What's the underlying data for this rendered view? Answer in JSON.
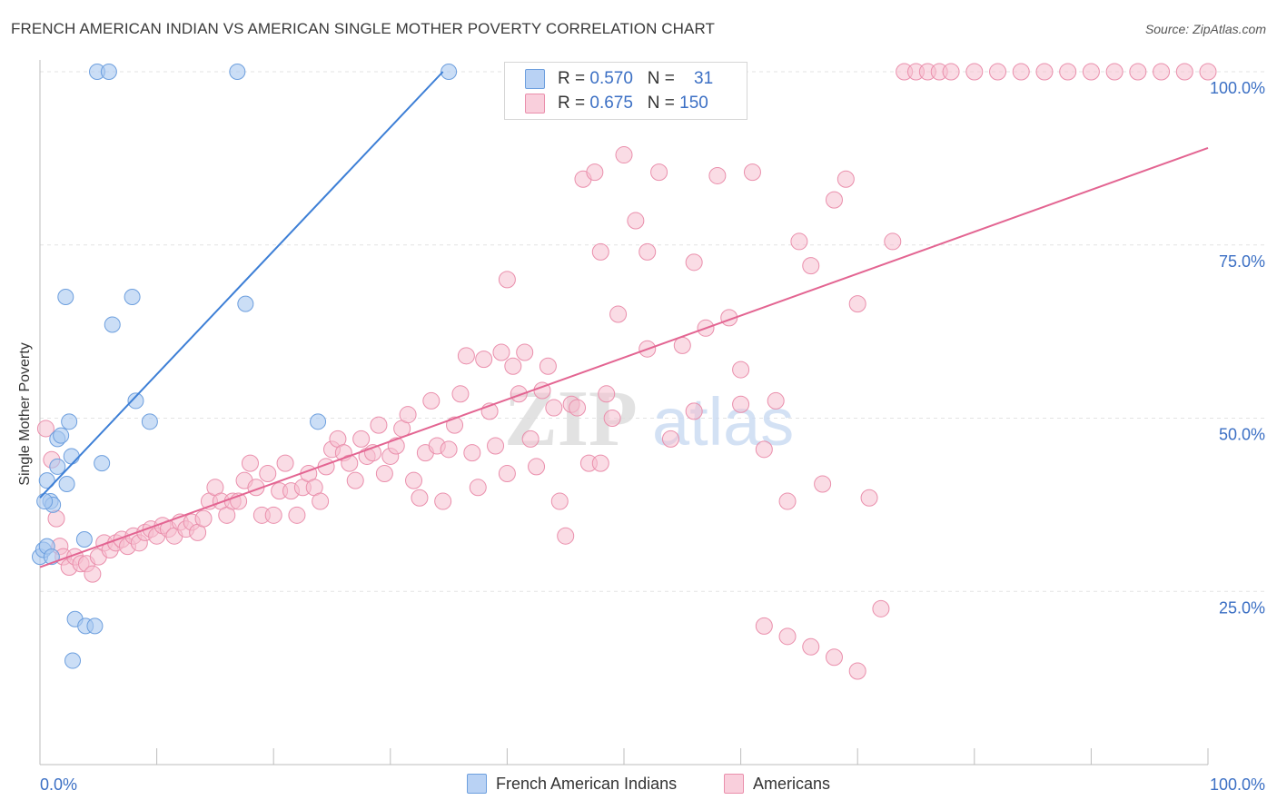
{
  "title": "FRENCH AMERICAN INDIAN VS AMERICAN SINGLE MOTHER POVERTY CORRELATION CHART",
  "source": "Source: ZipAtlas.com",
  "watermark": {
    "zip": "ZIP",
    "atlas": "atlas"
  },
  "legend_stats": [
    {
      "r_label": "R =",
      "r_value": "0.570",
      "n_label": "N =",
      "n_value": "31"
    },
    {
      "r_label": "R =",
      "r_value": "0.675",
      "n_label": "N =",
      "n_value": "150"
    }
  ],
  "colors": {
    "blue_fill": "#a9c8f0",
    "blue_stroke": "#6d9fde",
    "blue_line": "#3d7fd6",
    "pink_fill": "#f6bfd0",
    "pink_stroke": "#ea8fac",
    "pink_line": "#e36592",
    "tick_label": "#3b6fc4",
    "grid": "#e3e3e3"
  },
  "chart_data": {
    "type": "scatter",
    "title": "FRENCH AMERICAN INDIAN VS AMERICAN SINGLE MOTHER POVERTY CORRELATION CHART",
    "xlabel": "",
    "ylabel": "Single Mother Poverty",
    "xlim": [
      0,
      100
    ],
    "ylim": [
      0,
      102
    ],
    "x_tick_labels": [
      "0.0%",
      "100.0%"
    ],
    "y_ticks": [
      25,
      50,
      75,
      100
    ],
    "y_tick_labels": [
      "25.0%",
      "50.0%",
      "75.0%",
      "100.0%"
    ],
    "grid": true,
    "legend_position": "bottom",
    "series": [
      {
        "name": "French American Indians",
        "color": "#a9c8f0",
        "trend": {
          "x": [
            0,
            34.5
          ],
          "y": [
            38.5,
            100
          ]
        },
        "points": [
          [
            0,
            30
          ],
          [
            0.3,
            31
          ],
          [
            0.6,
            31.5
          ],
          [
            0.6,
            41
          ],
          [
            0.9,
            38
          ],
          [
            1.1,
            37.5
          ],
          [
            1.5,
            43
          ],
          [
            1.5,
            47
          ],
          [
            1.8,
            47.5
          ],
          [
            2.2,
            67.5
          ],
          [
            2.3,
            40.5
          ],
          [
            2.5,
            49.5
          ],
          [
            2.7,
            44.5
          ],
          [
            3,
            21
          ],
          [
            3.8,
            32.5
          ],
          [
            3.9,
            20
          ],
          [
            4.7,
            20
          ],
          [
            4.9,
            100
          ],
          [
            5.3,
            43.5
          ],
          [
            5.9,
            100
          ],
          [
            6.2,
            63.5
          ],
          [
            7.9,
            67.5
          ],
          [
            8.2,
            52.5
          ],
          [
            9.4,
            49.5
          ],
          [
            16.9,
            100
          ],
          [
            17.6,
            66.5
          ],
          [
            23.8,
            49.5
          ],
          [
            35,
            100
          ],
          [
            2.8,
            15
          ],
          [
            1,
            30
          ],
          [
            0.4,
            38
          ]
        ]
      },
      {
        "name": "Americans",
        "color": "#f6bfd0",
        "trend": {
          "x": [
            0,
            100
          ],
          "y": [
            28.5,
            89
          ]
        },
        "points": [
          [
            0.5,
            48.5
          ],
          [
            1,
            44
          ],
          [
            1.4,
            35.5
          ],
          [
            1.7,
            31.5
          ],
          [
            2,
            30
          ],
          [
            2.5,
            28.5
          ],
          [
            3,
            30
          ],
          [
            3.5,
            29
          ],
          [
            4,
            29
          ],
          [
            4.5,
            27.5
          ],
          [
            5,
            30
          ],
          [
            5.5,
            32
          ],
          [
            6,
            31
          ],
          [
            6.5,
            32
          ],
          [
            7,
            32.5
          ],
          [
            7.5,
            31.5
          ],
          [
            8,
            33
          ],
          [
            8.5,
            32
          ],
          [
            9,
            33.5
          ],
          [
            9.5,
            34
          ],
          [
            10,
            33
          ],
          [
            10.5,
            34.5
          ],
          [
            11,
            34
          ],
          [
            11.5,
            33
          ],
          [
            12,
            35
          ],
          [
            12.5,
            34
          ],
          [
            13,
            35
          ],
          [
            13.5,
            33.5
          ],
          [
            14,
            35.5
          ],
          [
            14.5,
            38
          ],
          [
            15,
            40
          ],
          [
            15.5,
            38
          ],
          [
            16,
            36
          ],
          [
            16.5,
            38
          ],
          [
            17,
            38
          ],
          [
            17.5,
            41
          ],
          [
            18,
            43.5
          ],
          [
            18.5,
            40
          ],
          [
            19,
            36
          ],
          [
            19.5,
            42
          ],
          [
            20,
            36
          ],
          [
            20.5,
            39.5
          ],
          [
            21,
            43.5
          ],
          [
            21.5,
            39.5
          ],
          [
            22,
            36
          ],
          [
            22.5,
            40
          ],
          [
            23,
            42
          ],
          [
            23.5,
            40
          ],
          [
            24,
            38
          ],
          [
            24.5,
            43
          ],
          [
            25,
            45.5
          ],
          [
            25.5,
            47
          ],
          [
            26,
            45
          ],
          [
            26.5,
            43.5
          ],
          [
            27,
            41
          ],
          [
            27.5,
            47
          ],
          [
            28,
            44.5
          ],
          [
            28.5,
            45
          ],
          [
            29,
            49
          ],
          [
            29.5,
            42
          ],
          [
            30,
            44.5
          ],
          [
            30.5,
            46
          ],
          [
            31,
            48.5
          ],
          [
            31.5,
            50.5
          ],
          [
            32,
            41
          ],
          [
            32.5,
            38.5
          ],
          [
            33,
            45
          ],
          [
            33.5,
            52.5
          ],
          [
            34,
            46
          ],
          [
            34.5,
            38
          ],
          [
            35,
            45.5
          ],
          [
            35.5,
            49
          ],
          [
            36,
            53.5
          ],
          [
            36.5,
            59
          ],
          [
            37,
            45
          ],
          [
            37.5,
            40
          ],
          [
            38,
            58.5
          ],
          [
            38.5,
            51
          ],
          [
            39,
            46
          ],
          [
            39.5,
            59.5
          ],
          [
            40,
            42
          ],
          [
            40.5,
            57.5
          ],
          [
            41,
            53.5
          ],
          [
            41.5,
            59.5
          ],
          [
            42,
            47
          ],
          [
            42.5,
            43
          ],
          [
            43,
            54
          ],
          [
            43.5,
            57.5
          ],
          [
            44,
            51.5
          ],
          [
            44.5,
            38
          ],
          [
            45,
            33
          ],
          [
            45.5,
            52
          ],
          [
            46,
            51.5
          ],
          [
            46.5,
            84.5
          ],
          [
            47,
            43.5
          ],
          [
            47.5,
            85.5
          ],
          [
            48,
            43.5
          ],
          [
            48.5,
            53.5
          ],
          [
            49,
            50
          ],
          [
            49.5,
            65
          ],
          [
            50,
            88
          ],
          [
            51,
            78.5
          ],
          [
            52,
            74
          ],
          [
            53,
            85.5
          ],
          [
            54,
            47
          ],
          [
            55,
            60.5
          ],
          [
            56,
            72.5
          ],
          [
            57,
            63
          ],
          [
            58,
            85
          ],
          [
            59,
            64.5
          ],
          [
            60,
            52
          ],
          [
            61,
            85.5
          ],
          [
            62,
            45.5
          ],
          [
            63,
            52.5
          ],
          [
            64,
            38
          ],
          [
            65,
            75.5
          ],
          [
            66,
            72
          ],
          [
            67,
            40.5
          ],
          [
            68,
            81.5
          ],
          [
            69,
            84.5
          ],
          [
            70,
            66.5
          ],
          [
            71,
            38.5
          ],
          [
            72,
            22.5
          ],
          [
            73,
            75.5
          ],
          [
            74,
            100
          ],
          [
            75,
            100
          ],
          [
            76,
            100
          ],
          [
            77,
            100
          ],
          [
            78,
            100
          ],
          [
            80,
            100
          ],
          [
            82,
            100
          ],
          [
            84,
            100
          ],
          [
            86,
            100
          ],
          [
            88,
            100
          ],
          [
            90,
            100
          ],
          [
            92,
            100
          ],
          [
            94,
            100
          ],
          [
            96,
            100
          ],
          [
            98,
            100
          ],
          [
            100,
            100
          ],
          [
            40,
            70
          ],
          [
            48,
            74
          ],
          [
            52,
            60
          ],
          [
            56,
            51
          ],
          [
            60,
            57
          ],
          [
            62,
            20
          ],
          [
            64,
            18.5
          ],
          [
            66,
            17
          ],
          [
            68,
            15.5
          ],
          [
            70,
            13.5
          ]
        ]
      }
    ]
  },
  "bottom_legend": [
    "French American Indians",
    "Americans"
  ]
}
